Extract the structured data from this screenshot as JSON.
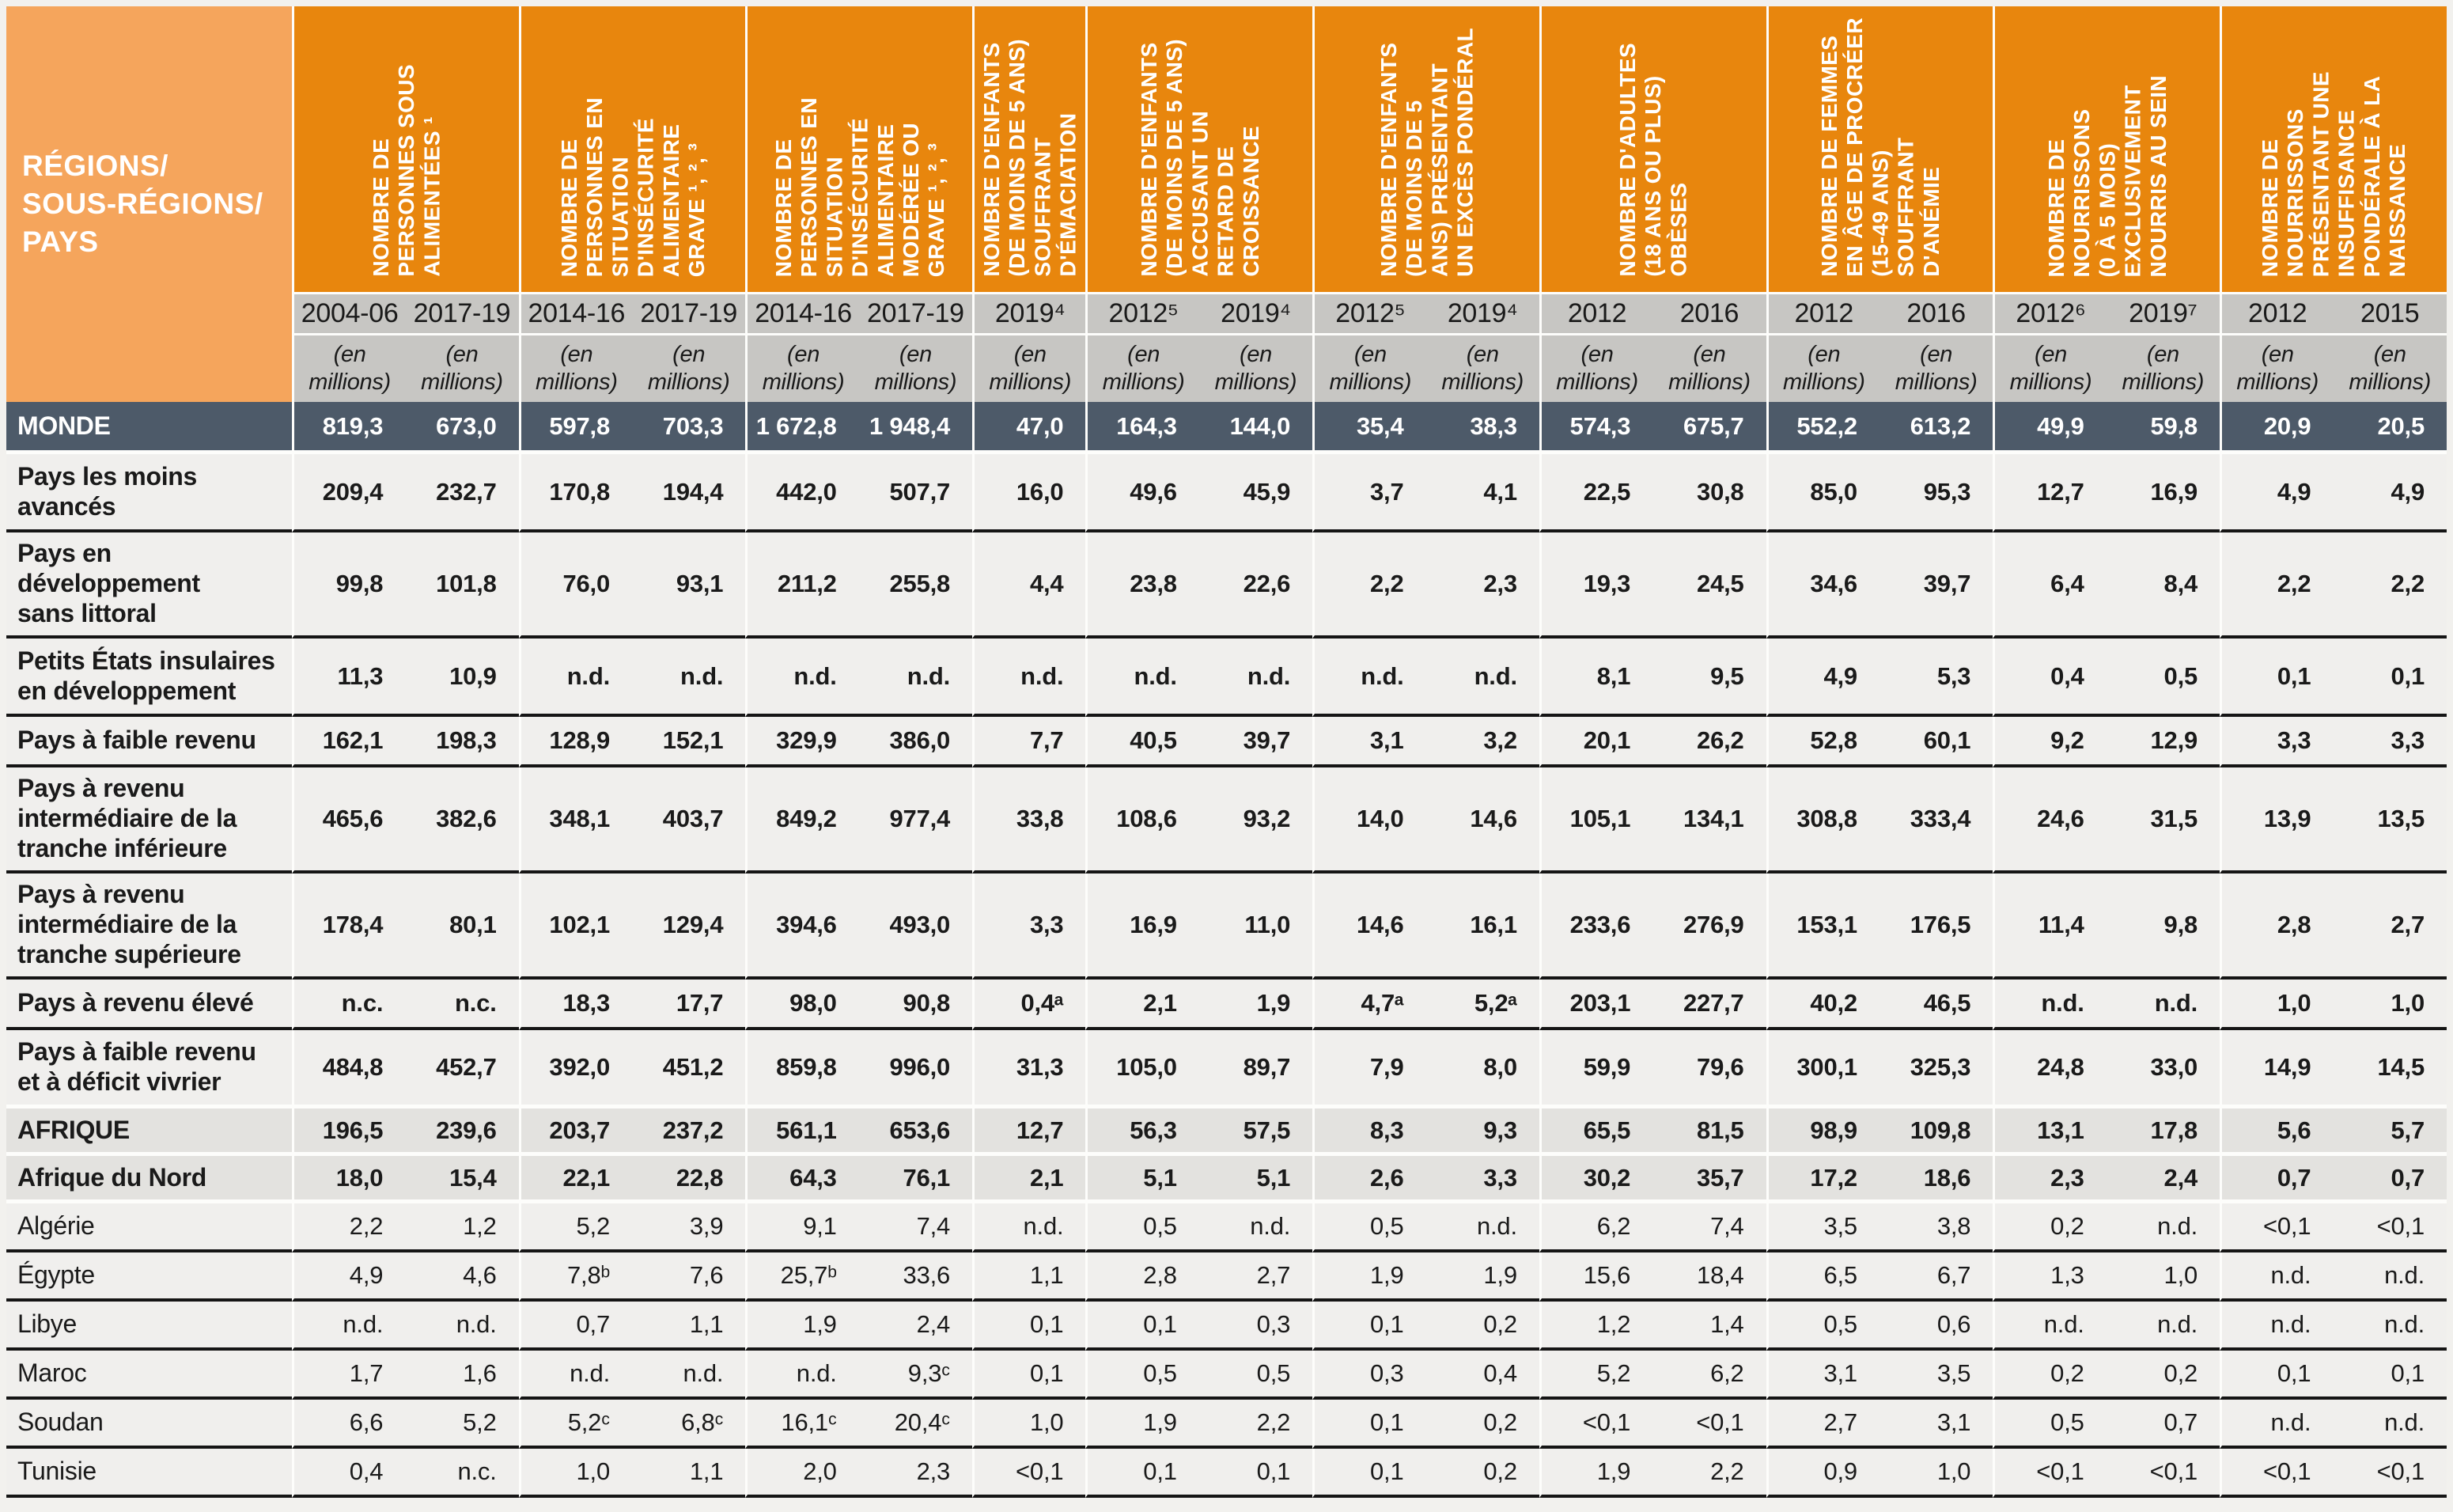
{
  "table": {
    "corner_label": "RÉGIONS/\nSOUS-RÉGIONS/\nPAYS",
    "unit_label": "(en\nmillions)",
    "groups": [
      {
        "label": "NOMBRE DE\nPERSONNES SOUS\nALIMENTÉES ¹",
        "years": [
          "2004-06",
          "2017-19"
        ]
      },
      {
        "label": "NOMBRE DE\nPERSONNES EN\nSITUATION\nD'INSÉCURITÉ\nALIMENTAIRE\nGRAVE ¹, ², ³",
        "years": [
          "2014-16",
          "2017-19"
        ]
      },
      {
        "label": "NOMBRE DE\nPERSONNES EN\nSITUATION\nD'INSÉCURITÉ\nALIMENTAIRE\nMODÉRÉE OU\nGRAVE ¹, ², ³",
        "years": [
          "2014-16",
          "2017-19"
        ]
      },
      {
        "label": "NOMBRE D'ENFANTS\n(DE MOINS DE 5 ANS)\nSOUFFRANT\nD'ÉMACIATION",
        "years": [
          "2019⁴"
        ]
      },
      {
        "label": "NOMBRE D'ENFANTS\n(DE MOINS DE 5 ANS)\nACCUSANT UN\nRETARD DE\nCROISSANCE",
        "years": [
          "2012⁵",
          "2019⁴"
        ]
      },
      {
        "label": "NOMBRE D'ENFANTS\n(DE MOINS DE 5\nANS) PRÉSENTANT\nUN EXCÈS PONDÉRAL",
        "years": [
          "2012⁵",
          "2019⁴"
        ]
      },
      {
        "label": "NOMBRE D'ADULTES\n(18 ANS OU PLUS)\nOBÈSES",
        "years": [
          "2012",
          "2016"
        ]
      },
      {
        "label": "NOMBRE DE FEMMES\nEN ÂGE DE PROCRÉER\n(15-49 ANS)\nSOUFFRANT\nD'ANÉMIE",
        "years": [
          "2012",
          "2016"
        ]
      },
      {
        "label": "NOMBRE DE\nNOURRISSONS\n(0 À 5 MOIS)\nEXCLUSIVEMENT\nNOURRIS AU SEIN",
        "years": [
          "2012⁶",
          "2019⁷"
        ]
      },
      {
        "label": "NOMBRE DE\nNOURRISSONS\nPRÉSENTANT UNE\nINSUFFISANCE\nPONDÉRALE À LA\nNAISSANCE",
        "years": [
          "2012",
          "2015"
        ]
      }
    ],
    "rows": [
      {
        "label": "MONDE",
        "type": "monde",
        "sep": "gap",
        "values": [
          "819,3",
          "673,0",
          "597,8",
          "703,3",
          "1 672,8",
          "1 948,4",
          "47,0",
          "164,3",
          "144,0",
          "35,4",
          "38,3",
          "574,3",
          "675,7",
          "552,2",
          "613,2",
          "49,9",
          "59,8",
          "20,9",
          "20,5"
        ]
      },
      {
        "label": "Pays les moins\navancés",
        "type": "group",
        "sep": "black",
        "values": [
          "209,4",
          "232,7",
          "170,8",
          "194,4",
          "442,0",
          "507,7",
          "16,0",
          "49,6",
          "45,9",
          "3,7",
          "4,1",
          "22,5",
          "30,8",
          "85,0",
          "95,3",
          "12,7",
          "16,9",
          "4,9",
          "4,9"
        ]
      },
      {
        "label": "Pays en\ndéveloppement\nsans littoral",
        "type": "group",
        "sep": "black",
        "values": [
          "99,8",
          "101,8",
          "76,0",
          "93,1",
          "211,2",
          "255,8",
          "4,4",
          "23,8",
          "22,6",
          "2,2",
          "2,3",
          "19,3",
          "24,5",
          "34,6",
          "39,7",
          "6,4",
          "8,4",
          "2,2",
          "2,2"
        ]
      },
      {
        "label": "Petits États insulaires\nen développement",
        "type": "group",
        "sep": "black",
        "values": [
          "11,3",
          "10,9",
          "n.d.",
          "n.d.",
          "n.d.",
          "n.d.",
          "n.d.",
          "n.d.",
          "n.d.",
          "n.d.",
          "n.d.",
          "8,1",
          "9,5",
          "4,9",
          "5,3",
          "0,4",
          "0,5",
          "0,1",
          "0,1"
        ]
      },
      {
        "label": "Pays à faible revenu",
        "type": "group",
        "sep": "black",
        "values": [
          "162,1",
          "198,3",
          "128,9",
          "152,1",
          "329,9",
          "386,0",
          "7,7",
          "40,5",
          "39,7",
          "3,1",
          "3,2",
          "20,1",
          "26,2",
          "52,8",
          "60,1",
          "9,2",
          "12,9",
          "3,3",
          "3,3"
        ]
      },
      {
        "label": "Pays à revenu\nintermédiaire de la\ntranche inférieure",
        "type": "group",
        "sep": "black",
        "values": [
          "465,6",
          "382,6",
          "348,1",
          "403,7",
          "849,2",
          "977,4",
          "33,8",
          "108,6",
          "93,2",
          "14,0",
          "14,6",
          "105,1",
          "134,1",
          "308,8",
          "333,4",
          "24,6",
          "31,5",
          "13,9",
          "13,5"
        ]
      },
      {
        "label": "Pays à revenu\nintermédiaire de la\ntranche supérieure",
        "type": "group",
        "sep": "black",
        "values": [
          "178,4",
          "80,1",
          "102,1",
          "129,4",
          "394,6",
          "493,0",
          "3,3",
          "16,9",
          "11,0",
          "14,6",
          "16,1",
          "233,6",
          "276,9",
          "153,1",
          "176,5",
          "11,4",
          "9,8",
          "2,8",
          "2,7"
        ]
      },
      {
        "label": "Pays à revenu élevé",
        "type": "group",
        "sep": "black",
        "values": [
          "n.c.",
          "n.c.",
          "18,3",
          "17,7",
          "98,0",
          "90,8",
          "0,4ᵃ",
          "2,1",
          "1,9",
          "4,7ᵃ",
          "5,2ᵃ",
          "203,1",
          "227,7",
          "40,2",
          "46,5",
          "n.d.",
          "n.d.",
          "1,0",
          "1,0"
        ]
      },
      {
        "label": "Pays à faible revenu\net à déficit vivrier",
        "type": "group",
        "sep": "gap",
        "values": [
          "484,8",
          "452,7",
          "392,0",
          "451,2",
          "859,8",
          "996,0",
          "31,3",
          "105,0",
          "89,7",
          "7,9",
          "8,0",
          "59,9",
          "79,6",
          "300,1",
          "325,3",
          "24,8",
          "33,0",
          "14,9",
          "14,5"
        ]
      },
      {
        "label": "AFRIQUE",
        "type": "region",
        "sep": "gap",
        "values": [
          "196,5",
          "239,6",
          "203,7",
          "237,2",
          "561,1",
          "653,6",
          "12,7",
          "56,3",
          "57,5",
          "8,3",
          "9,3",
          "65,5",
          "81,5",
          "98,9",
          "109,8",
          "13,1",
          "17,8",
          "5,6",
          "5,7"
        ]
      },
      {
        "label": "Afrique du Nord",
        "type": "region",
        "sep": "gap",
        "values": [
          "18,0",
          "15,4",
          "22,1",
          "22,8",
          "64,3",
          "76,1",
          "2,1",
          "5,1",
          "5,1",
          "2,6",
          "3,3",
          "30,2",
          "35,7",
          "17,2",
          "18,6",
          "2,3",
          "2,4",
          "0,7",
          "0,7"
        ]
      },
      {
        "label": "Algérie",
        "type": "country",
        "sep": "black",
        "values": [
          "2,2",
          "1,2",
          "5,2",
          "3,9",
          "9,1",
          "7,4",
          "n.d.",
          "0,5",
          "n.d.",
          "0,5",
          "n.d.",
          "6,2",
          "7,4",
          "3,5",
          "3,8",
          "0,2",
          "n.d.",
          "<0,1",
          "<0,1"
        ]
      },
      {
        "label": "Égypte",
        "type": "country",
        "sep": "black",
        "values": [
          "4,9",
          "4,6",
          "7,8ᵇ",
          "7,6",
          "25,7ᵇ",
          "33,6",
          "1,1",
          "2,8",
          "2,7",
          "1,9",
          "1,9",
          "15,6",
          "18,4",
          "6,5",
          "6,7",
          "1,3",
          "1,0",
          "n.d.",
          "n.d."
        ]
      },
      {
        "label": "Libye",
        "type": "country",
        "sep": "black",
        "values": [
          "n.d.",
          "n.d.",
          "0,7",
          "1,1",
          "1,9",
          "2,4",
          "0,1",
          "0,1",
          "0,3",
          "0,1",
          "0,2",
          "1,2",
          "1,4",
          "0,5",
          "0,6",
          "n.d.",
          "n.d.",
          "n.d.",
          "n.d."
        ]
      },
      {
        "label": "Maroc",
        "type": "country",
        "sep": "black",
        "values": [
          "1,7",
          "1,6",
          "n.d.",
          "n.d.",
          "n.d.",
          "9,3ᶜ",
          "0,1",
          "0,5",
          "0,5",
          "0,3",
          "0,4",
          "5,2",
          "6,2",
          "3,1",
          "3,5",
          "0,2",
          "0,2",
          "0,1",
          "0,1"
        ]
      },
      {
        "label": "Soudan",
        "type": "country",
        "sep": "black",
        "values": [
          "6,6",
          "5,2",
          "5,2ᶜ",
          "6,8ᶜ",
          "16,1ᶜ",
          "20,4ᶜ",
          "1,0",
          "1,9",
          "2,2",
          "0,1",
          "0,2",
          "<0,1",
          "<0,1",
          "2,7",
          "3,1",
          "0,5",
          "0,7",
          "n.d.",
          "n.d."
        ]
      },
      {
        "label": "Tunisie",
        "type": "country",
        "sep": "black",
        "values": [
          "0,4",
          "n.c.",
          "1,0",
          "1,1",
          "2,0",
          "2,3",
          "<0,1",
          "0,1",
          "0,1",
          "0,1",
          "0,2",
          "1,9",
          "2,2",
          "0,9",
          "1,0",
          "<0,1",
          "<0,1",
          "<0,1",
          "<0,1"
        ]
      }
    ]
  },
  "colors": {
    "corner_orange": "#F5A55C",
    "header_orange": "#E8860D",
    "subheader_gray": "#C7C6C3",
    "monde_row_bg": "#4D5A69",
    "row_light_bg": "#F0EFED",
    "row_region_bg": "#E3E2DF",
    "border_dark": "#151515",
    "separator_white": "#FDFDFB"
  }
}
